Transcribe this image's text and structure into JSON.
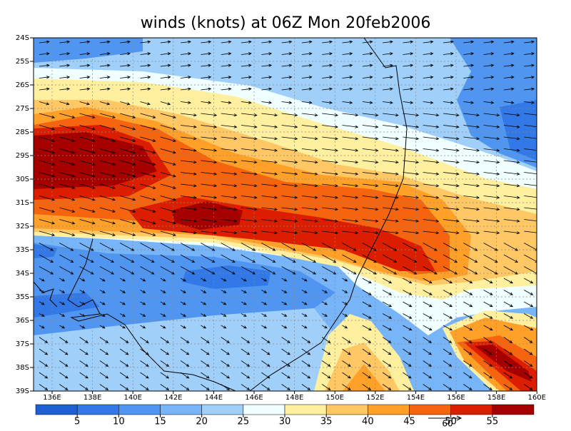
{
  "title": "winds (knots) at 06Z Mon 20feb2006",
  "lat_labels": [
    "24S",
    "25S",
    "26S",
    "27S",
    "28S",
    "29S",
    "30S",
    "31S",
    "32S",
    "33S",
    "34S",
    "35S",
    "36S",
    "37S",
    "38S",
    "39S"
  ],
  "lon_labels": [
    "136E",
    "138E",
    "140E",
    "142E",
    "144E",
    "146E",
    "148E",
    "150E",
    "152E",
    "154E",
    "156E",
    "158E",
    "160E"
  ],
  "colorbar": {
    "levels": [
      5,
      10,
      15,
      20,
      25,
      30,
      35,
      40,
      45,
      50,
      55
    ],
    "colors": [
      "#1e5fd2",
      "#3278e6",
      "#5096f0",
      "#78b4f8",
      "#a0d0fa",
      "#f0ffff",
      "#fff0a0",
      "#ffc864",
      "#ffa028",
      "#f5640f",
      "#dc1e00",
      "#a50000"
    ]
  },
  "reference_vector_label": "60"
}
